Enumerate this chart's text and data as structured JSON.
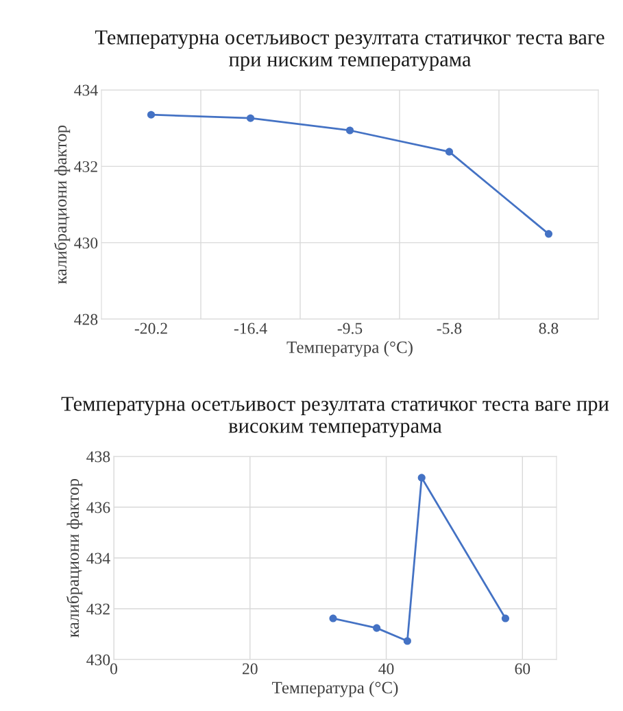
{
  "chart_data": [
    {
      "type": "line",
      "title": "Температурна осетљивост резултата статичког теста ваге при ниским температурама",
      "xlabel": "Температура (°C)",
      "ylabel": "калибрациони фактор",
      "categories": [
        "-20.2",
        "-16.4",
        "-9.5",
        "-5.8",
        "8.8"
      ],
      "series": [
        {
          "color": "#4472c4",
          "values": [
            433.35,
            433.26,
            432.94,
            432.38,
            430.23
          ]
        }
      ],
      "ylim": [
        428,
        434
      ],
      "yticks": [
        428,
        430,
        432,
        434
      ],
      "grid": true,
      "marker": "circle",
      "line_style": "solid",
      "legend": false
    },
    {
      "type": "line",
      "title": "Температурна осетљивост резултата статичког теста ваге при високим температурама",
      "xlabel": "Температура (°C)",
      "ylabel": "калибрациони фактор",
      "x": [
        32.2,
        38.6,
        43.1,
        45.2,
        57.5
      ],
      "series": [
        {
          "color": "#4472c4",
          "values": [
            431.62,
            431.24,
            430.73,
            437.16,
            431.62
          ]
        }
      ],
      "xlim": [
        0,
        65
      ],
      "xticks": [
        0,
        20,
        40,
        60
      ],
      "ylim": [
        430,
        438
      ],
      "yticks": [
        430,
        432,
        434,
        436,
        438
      ],
      "grid": true,
      "marker": "circle",
      "line_style": "solid",
      "legend": false
    }
  ]
}
